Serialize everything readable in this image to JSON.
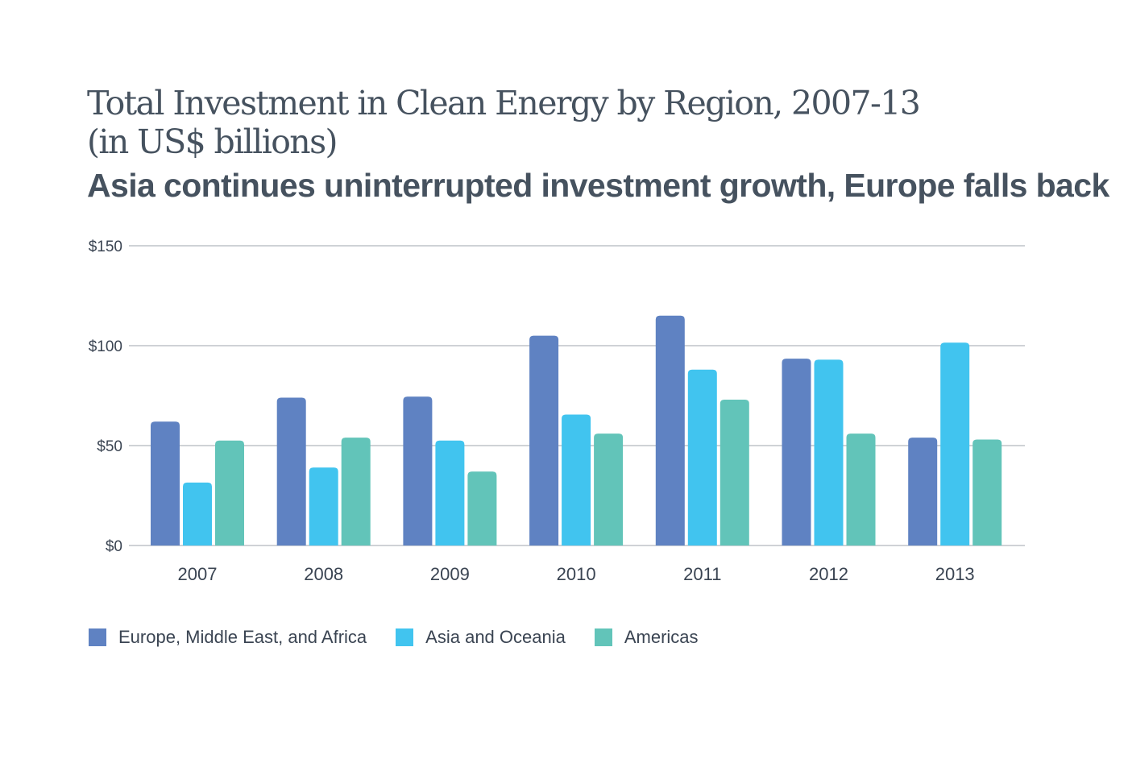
{
  "chart_data": {
    "type": "bar",
    "title": "Total Investment in Clean Energy by Region, 2007-13 (in US$ billions)",
    "title_lines": [
      "Total Investment in Clean Energy by Region, 2007-13",
      "(in US$ billions)"
    ],
    "subtitle": "Asia continues uninterrupted investment growth, Europe falls back",
    "xlabel": "",
    "ylabel": "",
    "categories": [
      "2007",
      "2008",
      "2009",
      "2010",
      "2011",
      "2012",
      "2013"
    ],
    "series": [
      {
        "name": "Europe, Middle East, and Africa",
        "color": "#5f82c2",
        "values": [
          62,
          74,
          74.5,
          105,
          115,
          93.5,
          54
        ]
      },
      {
        "name": "Asia and Oceania",
        "color": "#41c4ef",
        "values": [
          31.5,
          39,
          52.5,
          65.5,
          88,
          93,
          101.5
        ]
      },
      {
        "name": "Americas",
        "color": "#62c4b9",
        "values": [
          52.5,
          54,
          37,
          56,
          73,
          56,
          53
        ]
      }
    ],
    "ylim": [
      0,
      150
    ],
    "yticks": [
      0,
      50,
      100,
      150
    ],
    "ytick_labels": [
      "$0",
      "$50",
      "$100",
      "$150"
    ],
    "grid": true,
    "legend_position": "bottom-left"
  }
}
